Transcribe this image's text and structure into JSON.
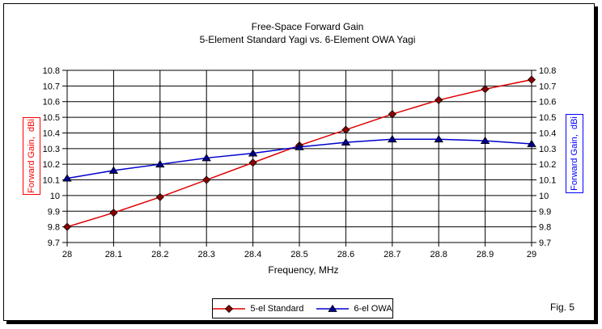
{
  "window": {
    "figure_label": "Fig. 5"
  },
  "chart_data": {
    "type": "line",
    "title": "Free-Space Forward Gain",
    "subtitle": "5-Element Standard Yagi vs. 6-Element OWA Yagi",
    "xlabel": "Frequency, MHz",
    "ylabel_left": "Forward Gain,  dBi",
    "ylabel_right": "Forward Gain,  dBi",
    "xlim": [
      28,
      29
    ],
    "ylim": [
      9.7,
      10.8
    ],
    "grid": true,
    "legend_position": "bottom",
    "x": [
      28,
      28.1,
      28.2,
      28.3,
      28.4,
      28.5,
      28.6,
      28.7,
      28.8,
      28.9,
      29
    ],
    "x_tick_labels": [
      "28",
      "28.1",
      "28.2",
      "28.3",
      "28.4",
      "28.5",
      "28.6",
      "28.7",
      "28.8",
      "28.9",
      "29"
    ],
    "y_tick_labels": [
      "10.8",
      "10.7",
      "10.6",
      "10.5",
      "10.4",
      "10.3",
      "10.2",
      "10.1",
      "10",
      "9.9",
      "9.8",
      "9.7"
    ],
    "axis_color": "#000000",
    "left_axis_label_color": "#ff0000",
    "right_axis_label_color": "#0000ff",
    "series": [
      {
        "name": "5-el Standard",
        "marker": "diamond",
        "line_color": "#dd0000",
        "marker_color": "#8b0000",
        "values": [
          9.8,
          9.89,
          9.99,
          10.1,
          10.21,
          10.32,
          10.42,
          10.52,
          10.61,
          10.68,
          10.74
        ]
      },
      {
        "name": "6-el OWA",
        "marker": "triangle",
        "line_color": "#0000cc",
        "marker_color": "#00008b",
        "values": [
          10.11,
          10.16,
          10.2,
          10.24,
          10.27,
          10.31,
          10.34,
          10.36,
          10.36,
          10.35,
          10.33
        ]
      }
    ]
  }
}
